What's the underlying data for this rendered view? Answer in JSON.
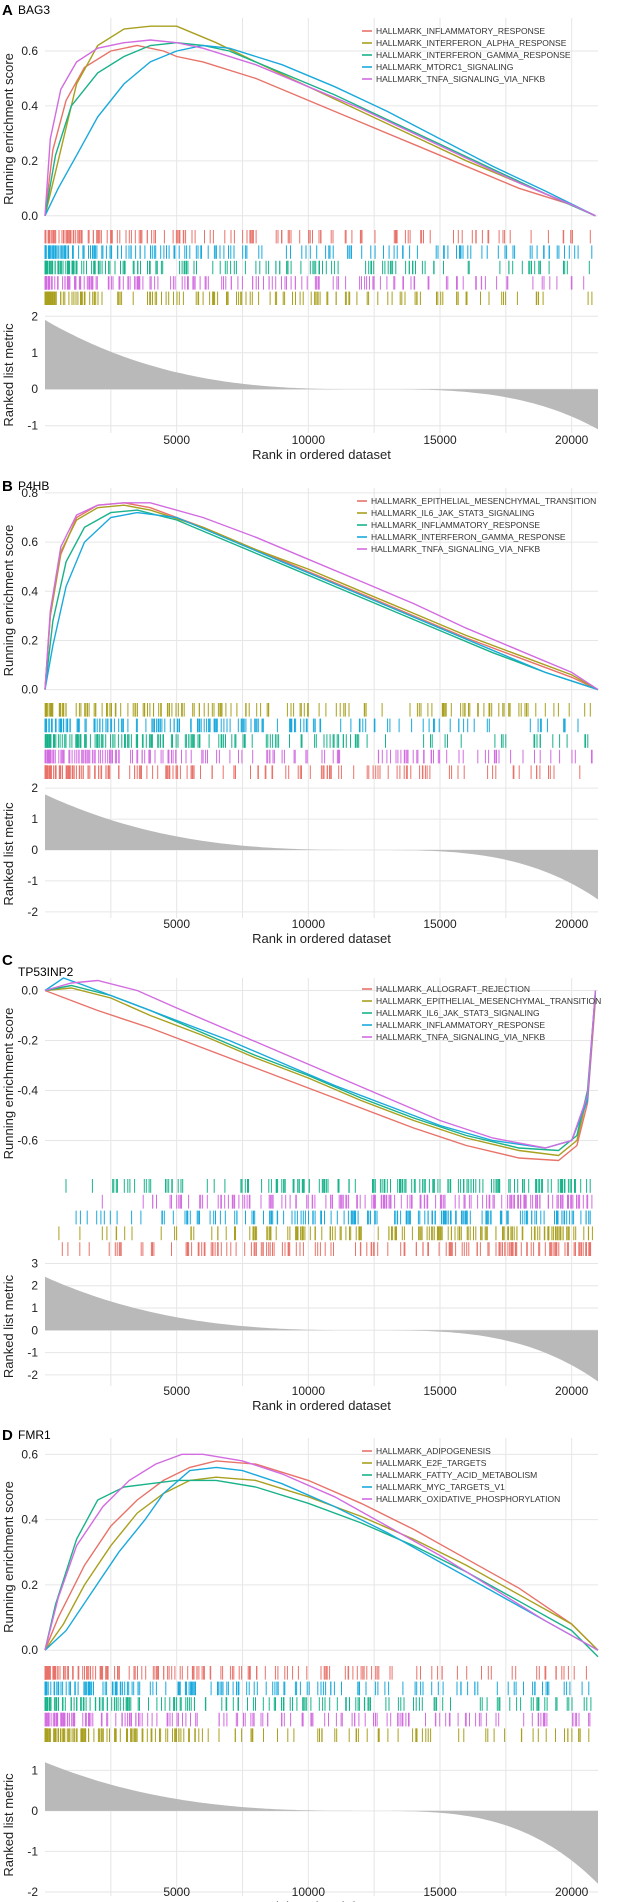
{
  "chart_data": [
    {
      "type": "line",
      "panel_label": "A",
      "title": "BAG3",
      "xlabel": "Rank in ordered dataset",
      "ylabel_top": "Running enrichment score",
      "ylabel_bottom": "Ranked list metric",
      "xlim": [
        0,
        21000
      ],
      "xticks": [
        5000,
        10000,
        15000,
        20000
      ],
      "es_ylim": [
        -0.03,
        0.72
      ],
      "es_yticks": [
        0.0,
        0.2,
        0.4,
        0.6
      ],
      "metric_ylim": [
        -1.2,
        2.2
      ],
      "metric_yticks": [
        -1,
        0,
        1,
        2
      ],
      "metric_range": [
        1.9,
        -1.1
      ],
      "legend": "top-right",
      "series": [
        {
          "name": "HALLMARK_INFLAMMATORY_RESPONSE",
          "color": "#e8736a",
          "x": [
            0,
            300,
            800,
            1500,
            2500,
            3500,
            4500,
            5000,
            6000,
            8000,
            10000,
            12000,
            14000,
            16000,
            18000,
            20000,
            20900
          ],
          "y": [
            0.0,
            0.24,
            0.42,
            0.54,
            0.6,
            0.62,
            0.6,
            0.58,
            0.56,
            0.5,
            0.42,
            0.34,
            0.26,
            0.18,
            0.1,
            0.04,
            0.0
          ]
        },
        {
          "name": "HALLMARK_INTERFERON_ALPHA_RESPONSE",
          "color": "#a9a01f",
          "x": [
            0,
            500,
            1200,
            2000,
            3000,
            4000,
            5000,
            5500,
            6500,
            8000,
            10000,
            12000,
            14000,
            16000,
            18000,
            20000,
            20900
          ],
          "y": [
            0.0,
            0.2,
            0.48,
            0.62,
            0.68,
            0.69,
            0.69,
            0.67,
            0.63,
            0.56,
            0.47,
            0.38,
            0.29,
            0.2,
            0.12,
            0.04,
            0.0
          ]
        },
        {
          "name": "HALLMARK_INTERFERON_GAMMA_RESPONSE",
          "color": "#19b28a",
          "x": [
            0,
            400,
            1000,
            2000,
            3000,
            4000,
            5000,
            6000,
            7000,
            9000,
            11000,
            13000,
            15000,
            17000,
            19000,
            20900
          ],
          "y": [
            0.0,
            0.22,
            0.4,
            0.52,
            0.58,
            0.62,
            0.63,
            0.62,
            0.6,
            0.52,
            0.44,
            0.35,
            0.26,
            0.17,
            0.08,
            0.0
          ]
        },
        {
          "name": "HALLMARK_MTORC1_SIGNALING",
          "color": "#1aa9dc",
          "x": [
            0,
            500,
            1200,
            2000,
            3000,
            4000,
            5000,
            6000,
            7000,
            9000,
            11000,
            13000,
            15000,
            17000,
            19000,
            20900
          ],
          "y": [
            0.0,
            0.1,
            0.22,
            0.36,
            0.48,
            0.56,
            0.6,
            0.62,
            0.61,
            0.55,
            0.47,
            0.38,
            0.28,
            0.18,
            0.09,
            0.0
          ]
        },
        {
          "name": "HALLMARK_TNFA_SIGNALING_VIA_NFKB",
          "color": "#d26ce0",
          "x": [
            0,
            200,
            600,
            1200,
            2000,
            3000,
            4000,
            5000,
            6000,
            8000,
            10000,
            12000,
            14000,
            16000,
            18000,
            20000,
            20900
          ],
          "y": [
            0.0,
            0.28,
            0.46,
            0.56,
            0.61,
            0.63,
            0.64,
            0.63,
            0.61,
            0.55,
            0.47,
            0.39,
            0.3,
            0.21,
            0.12,
            0.04,
            0.0
          ]
        }
      ]
    },
    {
      "type": "line",
      "panel_label": "B",
      "title": "P4HB",
      "xlabel": "Rank in ordered dataset",
      "ylabel_top": "Running enrichment score",
      "ylabel_bottom": "Ranked list metric",
      "xlim": [
        0,
        21000
      ],
      "xticks": [
        5000,
        10000,
        15000,
        20000
      ],
      "es_ylim": [
        -0.03,
        0.82
      ],
      "es_yticks": [
        0.0,
        0.2,
        0.4,
        0.6,
        0.8
      ],
      "metric_ylim": [
        -2.2,
        2.2
      ],
      "metric_yticks": [
        -2,
        -1,
        0,
        1,
        2
      ],
      "metric_range": [
        1.8,
        -1.6
      ],
      "legend": "top-right",
      "series": [
        {
          "name": "HALLMARK_EPITHELIAL_MESENCHYMAL_TRANSITION",
          "color": "#e8736a",
          "x": [
            0,
            200,
            600,
            1200,
            2000,
            3000,
            4000,
            6000,
            8000,
            10000,
            12000,
            14000,
            16000,
            18000,
            20000,
            21000
          ],
          "y": [
            0.0,
            0.3,
            0.55,
            0.7,
            0.75,
            0.76,
            0.74,
            0.66,
            0.57,
            0.48,
            0.39,
            0.3,
            0.21,
            0.13,
            0.05,
            0.0
          ]
        },
        {
          "name": "HALLMARK_IL6_JAK_STAT3_SIGNALING",
          "color": "#a9a01f",
          "x": [
            0,
            200,
            600,
            1200,
            2000,
            3000,
            4000,
            6000,
            8000,
            10000,
            12000,
            14000,
            16000,
            18000,
            20000,
            21000
          ],
          "y": [
            0.0,
            0.3,
            0.56,
            0.69,
            0.74,
            0.75,
            0.73,
            0.66,
            0.57,
            0.49,
            0.4,
            0.31,
            0.22,
            0.14,
            0.06,
            0.0
          ]
        },
        {
          "name": "HALLMARK_INFLAMMATORY_RESPONSE",
          "color": "#19b28a",
          "x": [
            0,
            300,
            800,
            1500,
            2500,
            3500,
            5000,
            7000,
            9000,
            11000,
            13000,
            15000,
            17000,
            19000,
            21000
          ],
          "y": [
            0.0,
            0.28,
            0.52,
            0.66,
            0.72,
            0.73,
            0.69,
            0.6,
            0.51,
            0.42,
            0.33,
            0.24,
            0.15,
            0.07,
            0.0
          ]
        },
        {
          "name": "HALLMARK_INTERFERON_GAMMA_RESPONSE",
          "color": "#1aa9dc",
          "x": [
            0,
            300,
            800,
            1500,
            2500,
            3500,
            5000,
            7000,
            9000,
            11000,
            13000,
            15000,
            17000,
            19000,
            21000
          ],
          "y": [
            0.0,
            0.18,
            0.42,
            0.6,
            0.7,
            0.72,
            0.7,
            0.61,
            0.52,
            0.43,
            0.34,
            0.25,
            0.16,
            0.07,
            0.0
          ]
        },
        {
          "name": "HALLMARK_TNFA_SIGNALING_VIA_NFKB",
          "color": "#d26ce0",
          "x": [
            0,
            200,
            600,
            1200,
            2000,
            3000,
            4000,
            6000,
            8000,
            10000,
            12000,
            14000,
            16000,
            18000,
            20000,
            21000
          ],
          "y": [
            0.0,
            0.32,
            0.58,
            0.71,
            0.75,
            0.76,
            0.76,
            0.7,
            0.62,
            0.53,
            0.44,
            0.35,
            0.25,
            0.16,
            0.07,
            0.0
          ]
        }
      ]
    },
    {
      "type": "line",
      "panel_label": "C",
      "title": "TP53INP2",
      "xlabel": "Rank in ordered dataset",
      "ylabel_top": "Running enrichment score",
      "ylabel_bottom": "Ranked list metric",
      "xlim": [
        0,
        21000
      ],
      "xticks": [
        5000,
        10000,
        15000,
        20000
      ],
      "es_ylim": [
        -0.73,
        0.05
      ],
      "es_yticks": [
        0.0,
        -0.2,
        -0.4,
        -0.6
      ],
      "metric_ylim": [
        -2.5,
        3.2
      ],
      "metric_yticks": [
        -2,
        -1,
        0,
        1,
        2,
        3
      ],
      "metric_range": [
        2.4,
        -2.3
      ],
      "legend": "top-right",
      "series": [
        {
          "name": "HALLMARK_ALLOGRAFT_REJECTION",
          "color": "#e8736a",
          "x": [
            0,
            1000,
            2000,
            4000,
            6000,
            8000,
            10000,
            12000,
            14000,
            16000,
            18000,
            19500,
            20200,
            20600,
            20900
          ],
          "y": [
            0.0,
            -0.04,
            -0.08,
            -0.15,
            -0.23,
            -0.31,
            -0.39,
            -0.47,
            -0.55,
            -0.62,
            -0.67,
            -0.68,
            -0.62,
            -0.45,
            -0.04
          ]
        },
        {
          "name": "HALLMARK_EPITHELIAL_MESENCHYMAL_TRANSITION",
          "color": "#a9a01f",
          "x": [
            0,
            1000,
            2500,
            4000,
            6000,
            8000,
            10000,
            12000,
            14000,
            16000,
            18000,
            19500,
            20200,
            20600,
            20900
          ],
          "y": [
            0.0,
            0.01,
            -0.03,
            -0.1,
            -0.18,
            -0.27,
            -0.35,
            -0.44,
            -0.52,
            -0.59,
            -0.64,
            -0.66,
            -0.6,
            -0.42,
            -0.02
          ]
        },
        {
          "name": "HALLMARK_IL6_JAK_STAT3_SIGNALING",
          "color": "#19b28a",
          "x": [
            0,
            1000,
            2500,
            4000,
            6000,
            8000,
            10000,
            12000,
            14000,
            16000,
            18000,
            19500,
            20200,
            20600,
            20900
          ],
          "y": [
            0.0,
            0.02,
            -0.02,
            -0.08,
            -0.17,
            -0.26,
            -0.34,
            -0.43,
            -0.51,
            -0.58,
            -0.63,
            -0.64,
            -0.58,
            -0.4,
            -0.01
          ]
        },
        {
          "name": "HALLMARK_INFLAMMATORY_RESPONSE",
          "color": "#1aa9dc",
          "x": [
            0,
            700,
            1500,
            3000,
            5000,
            7000,
            9000,
            11000,
            13000,
            15000,
            17000,
            19000,
            20000,
            20600,
            20900
          ],
          "y": [
            0.0,
            0.05,
            0.02,
            -0.04,
            -0.12,
            -0.2,
            -0.29,
            -0.38,
            -0.46,
            -0.54,
            -0.6,
            -0.63,
            -0.6,
            -0.44,
            0.0
          ]
        },
        {
          "name": "HALLMARK_TNFA_SIGNALING_VIA_NFKB",
          "color": "#d26ce0",
          "x": [
            0,
            1000,
            2000,
            3500,
            5000,
            7000,
            9000,
            11000,
            13000,
            15000,
            17000,
            19000,
            20000,
            20600,
            20900
          ],
          "y": [
            0.0,
            0.03,
            0.04,
            0.0,
            -0.07,
            -0.16,
            -0.25,
            -0.34,
            -0.43,
            -0.52,
            -0.59,
            -0.63,
            -0.6,
            -0.42,
            0.0
          ]
        }
      ]
    },
    {
      "type": "line",
      "panel_label": "D",
      "title": "FMR1",
      "xlabel": "Rank in ordered dataset",
      "ylabel_top": "Running enrichment score",
      "ylabel_bottom": "Ranked list metric",
      "xlim": [
        0,
        21000
      ],
      "xticks": [
        5000,
        10000,
        15000,
        20000
      ],
      "es_ylim": [
        -0.03,
        0.65
      ],
      "es_yticks": [
        0.0,
        0.2,
        0.4,
        0.6
      ],
      "metric_ylim": [
        -2.1,
        1.6
      ],
      "metric_yticks": [
        -2,
        -1,
        0,
        1
      ],
      "metric_range": [
        1.2,
        -1.8
      ],
      "legend": "top-right",
      "series": [
        {
          "name": "HALLMARK_ADIPOGENESIS",
          "color": "#e8736a",
          "x": [
            0,
            500,
            1500,
            2500,
            3500,
            4500,
            5500,
            6500,
            8000,
            10000,
            12000,
            14000,
            16000,
            18000,
            20000,
            21000
          ],
          "y": [
            0.0,
            0.1,
            0.26,
            0.38,
            0.46,
            0.52,
            0.56,
            0.58,
            0.57,
            0.52,
            0.45,
            0.37,
            0.28,
            0.19,
            0.08,
            0.0
          ]
        },
        {
          "name": "HALLMARK_E2F_TARGETS",
          "color": "#a9a01f",
          "x": [
            0,
            700,
            1500,
            2500,
            3500,
            4500,
            5500,
            6500,
            8000,
            10000,
            12000,
            14000,
            16000,
            18000,
            20000,
            21000
          ],
          "y": [
            0.0,
            0.08,
            0.2,
            0.32,
            0.42,
            0.48,
            0.52,
            0.53,
            0.52,
            0.47,
            0.41,
            0.34,
            0.26,
            0.17,
            0.08,
            0.0
          ]
        },
        {
          "name": "HALLMARK_FATTY_ACID_METABOLISM",
          "color": "#19b28a",
          "x": [
            0,
            400,
            1200,
            2000,
            3000,
            4000,
            5000,
            6500,
            8000,
            10000,
            12000,
            14000,
            16000,
            18000,
            20000,
            21000
          ],
          "y": [
            0.0,
            0.14,
            0.34,
            0.46,
            0.5,
            0.51,
            0.52,
            0.52,
            0.5,
            0.45,
            0.39,
            0.32,
            0.24,
            0.15,
            0.06,
            -0.02
          ]
        },
        {
          "name": "HALLMARK_MYC_TARGETS_V1",
          "color": "#1aa9dc",
          "x": [
            0,
            800,
            1800,
            2800,
            3800,
            4500,
            5500,
            6500,
            7500,
            9000,
            11000,
            13000,
            15000,
            17000,
            19000,
            21000
          ],
          "y": [
            0.0,
            0.06,
            0.18,
            0.3,
            0.4,
            0.48,
            0.55,
            0.56,
            0.55,
            0.51,
            0.44,
            0.36,
            0.27,
            0.18,
            0.09,
            0.0
          ]
        },
        {
          "name": "HALLMARK_OXIDATIVE_PHOSPHORYLATION",
          "color": "#d26ce0",
          "x": [
            0,
            500,
            1200,
            2200,
            3200,
            4200,
            5200,
            6000,
            7500,
            9000,
            11000,
            13000,
            15000,
            17000,
            19000,
            21000
          ],
          "y": [
            0.0,
            0.16,
            0.32,
            0.44,
            0.52,
            0.57,
            0.6,
            0.6,
            0.58,
            0.54,
            0.47,
            0.38,
            0.29,
            0.19,
            0.09,
            0.0
          ]
        }
      ]
    }
  ]
}
